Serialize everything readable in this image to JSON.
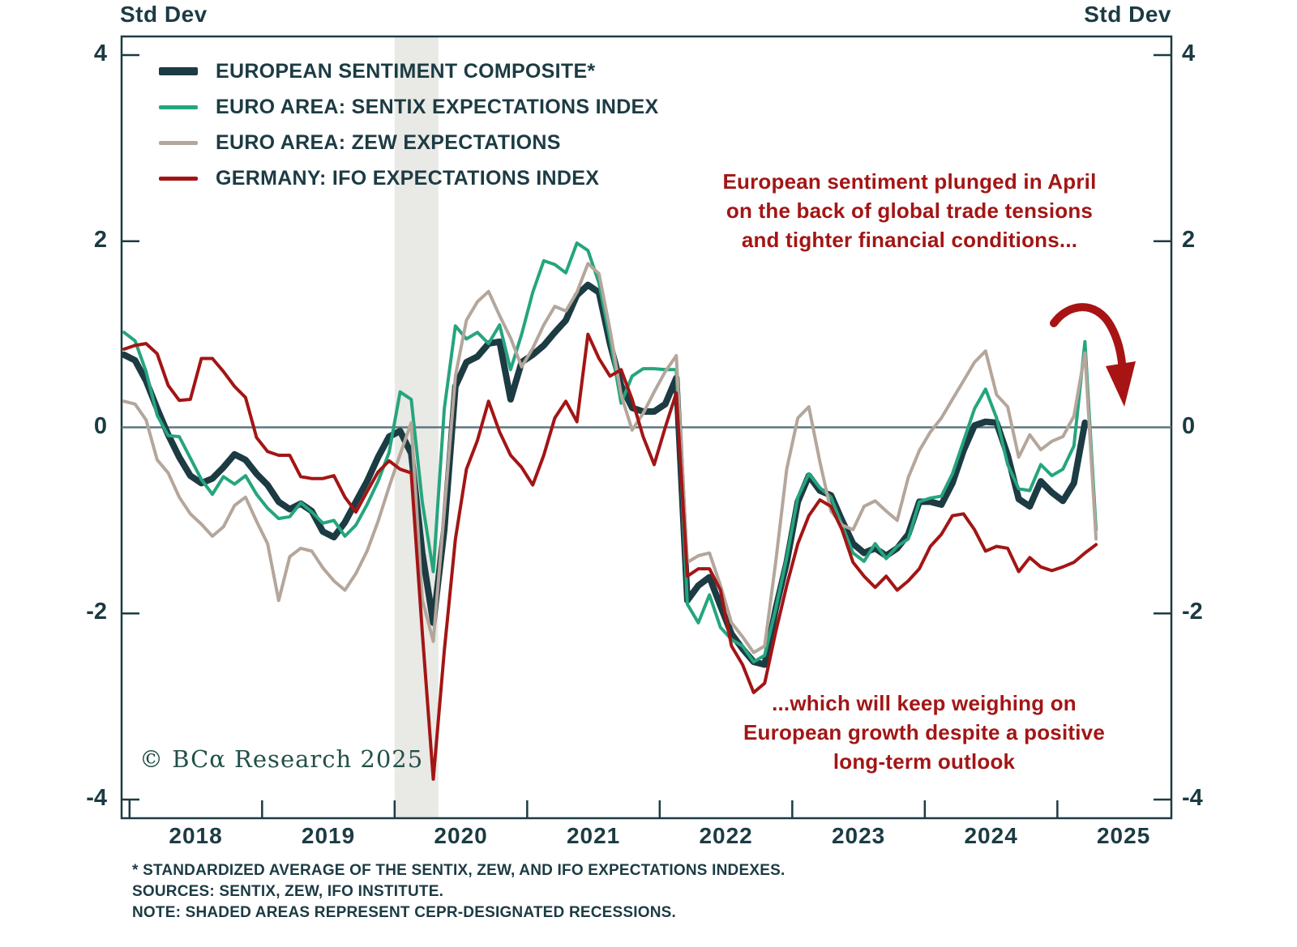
{
  "y_axis_label_left": "Std Dev",
  "y_axis_label_right": "Std Dev",
  "axes": {
    "ylim": [
      -4.2,
      4.2
    ],
    "yticks": [
      4,
      2,
      0,
      -2,
      -4
    ],
    "x_start": 2017.94,
    "x_end": 2025.86,
    "year_labels": [
      "2018",
      "2019",
      "2020",
      "2021",
      "2022",
      "2023",
      "2024",
      "2025"
    ],
    "grid": false,
    "legend_position": "top-left"
  },
  "recession_band": {
    "from": 2020.0,
    "to": 2020.33,
    "color": "#e9e9e5",
    "meaning": "CEPR-designated recession"
  },
  "annotations": {
    "top": {
      "lines": [
        "European sentiment plunged in April",
        "on the back of global trade tensions",
        "and tighter financial conditions..."
      ]
    },
    "bottom": {
      "lines": [
        "...which will keep weighing on",
        "European growth despite a positive",
        "long-term outlook"
      ]
    },
    "color": "#a31515",
    "arrow": "curved red arrow pointing down toward the zero line at far right"
  },
  "copyright": "© BCα Research 2025",
  "footnotes": [
    "* STANDARDIZED AVERAGE OF THE SENTIX, ZEW, AND IFO EXPECTATIONS INDEXES.",
    "SOURCES: SENTIX, ZEW, IFO INSTITUTE.",
    "NOTE: SHADED AREAS REPRESENT CEPR-DESIGNATED RECESSIONS."
  ],
  "colors": {
    "text": "#1c3b43",
    "border": "#1c3b43",
    "zero_line": "#5b7680",
    "annotation_red": "#a31515"
  },
  "chart_data": {
    "type": "line",
    "title": "",
    "xlabel": "",
    "ylabel": "Std Dev",
    "unit": "standard deviations",
    "frequency": "monthly",
    "start_month": "2017-12",
    "series": [
      {
        "name": "EUROPEAN SENTIMENT COMPOSITE*",
        "color": "#1c3b43",
        "stroke_width": 8,
        "end_month": "2025-03",
        "values": [
          0.78,
          0.72,
          0.5,
          0.2,
          -0.08,
          -0.32,
          -0.52,
          -0.6,
          -0.55,
          -0.43,
          -0.29,
          -0.35,
          -0.5,
          -0.62,
          -0.8,
          -0.88,
          -0.82,
          -0.9,
          -1.12,
          -1.18,
          -1.02,
          -0.8,
          -0.58,
          -0.32,
          -0.1,
          -0.04,
          -0.28,
          -1.35,
          -2.1,
          -1.1,
          0.44,
          0.7,
          0.76,
          0.9,
          0.92,
          0.3,
          0.7,
          0.78,
          0.88,
          1.02,
          1.15,
          1.42,
          1.53,
          1.45,
          0.9,
          0.45,
          0.21,
          0.17,
          0.17,
          0.25,
          0.53,
          -1.86,
          -1.7,
          -1.61,
          -1.92,
          -2.22,
          -2.38,
          -2.52,
          -2.55,
          -1.95,
          -1.45,
          -0.8,
          -0.52,
          -0.68,
          -0.73,
          -1.0,
          -1.25,
          -1.35,
          -1.3,
          -1.38,
          -1.3,
          -1.15,
          -0.8,
          -0.8,
          -0.83,
          -0.6,
          -0.25,
          0.02,
          0.06,
          0.05,
          -0.3,
          -0.77,
          -0.85,
          -0.58,
          -0.7,
          -0.79,
          -0.6,
          0.05
        ]
      },
      {
        "name": "EURO AREA: SENTIX EXPECTATIONS INDEX",
        "color": "#25a57e",
        "stroke_width": 4,
        "end_month": "2025-04",
        "values": [
          1.02,
          0.93,
          0.6,
          0.13,
          -0.09,
          -0.1,
          -0.33,
          -0.56,
          -0.72,
          -0.53,
          -0.61,
          -0.52,
          -0.72,
          -0.87,
          -0.98,
          -0.96,
          -0.81,
          -0.91,
          -1.03,
          -1.0,
          -1.17,
          -1.05,
          -0.83,
          -0.58,
          -0.27,
          0.38,
          0.3,
          -0.8,
          -1.55,
          0.2,
          1.09,
          0.95,
          1.02,
          0.9,
          1.1,
          0.62,
          1.0,
          1.45,
          1.79,
          1.75,
          1.66,
          1.98,
          1.9,
          1.55,
          0.95,
          0.26,
          0.55,
          0.63,
          0.63,
          0.62,
          0.62,
          -1.9,
          -2.1,
          -1.8,
          -2.15,
          -2.28,
          -2.35,
          -2.52,
          -2.45,
          -1.95,
          -1.4,
          -0.75,
          -0.5,
          -0.65,
          -0.75,
          -1.05,
          -1.35,
          -1.44,
          -1.25,
          -1.41,
          -1.28,
          -1.2,
          -0.8,
          -0.76,
          -0.74,
          -0.5,
          -0.15,
          0.2,
          0.41,
          0.1,
          -0.4,
          -0.66,
          -0.68,
          -0.4,
          -0.52,
          -0.45,
          -0.2,
          0.92,
          -1.1
        ]
      },
      {
        "name": "EURO AREA: ZEW EXPECTATIONS",
        "color": "#b4a69b",
        "stroke_width": 4,
        "end_month": "2025-04",
        "values": [
          0.28,
          0.25,
          0.08,
          -0.35,
          -0.49,
          -0.75,
          -0.93,
          -1.04,
          -1.17,
          -1.07,
          -0.84,
          -0.75,
          -1.01,
          -1.25,
          -1.86,
          -1.39,
          -1.3,
          -1.33,
          -1.51,
          -1.65,
          -1.75,
          -1.57,
          -1.33,
          -1.01,
          -0.64,
          -0.29,
          0.05,
          -1.85,
          -2.3,
          -0.9,
          0.55,
          1.15,
          1.35,
          1.46,
          1.2,
          0.96,
          0.65,
          0.85,
          1.1,
          1.3,
          1.25,
          1.45,
          1.76,
          1.65,
          1.05,
          0.35,
          -0.03,
          0.15,
          0.38,
          0.6,
          0.77,
          -1.45,
          -1.38,
          -1.35,
          -1.7,
          -2.1,
          -2.25,
          -2.42,
          -2.35,
          -1.45,
          -0.45,
          0.1,
          0.22,
          -0.37,
          -0.9,
          -1.05,
          -1.1,
          -0.85,
          -0.79,
          -0.9,
          -1.0,
          -0.54,
          -0.25,
          -0.05,
          0.1,
          0.3,
          0.5,
          0.7,
          0.82,
          0.35,
          0.22,
          -0.32,
          -0.08,
          -0.24,
          -0.15,
          -0.1,
          0.12,
          0.8,
          -1.2
        ]
      },
      {
        "name": "GERMANY: IFO EXPECTATIONS INDEX",
        "color": "#a31515",
        "stroke_width": 4,
        "end_month": "2025-04",
        "values": [
          0.84,
          0.88,
          0.9,
          0.79,
          0.45,
          0.29,
          0.3,
          0.74,
          0.74,
          0.6,
          0.44,
          0.32,
          -0.11,
          -0.26,
          -0.3,
          -0.3,
          -0.53,
          -0.55,
          -0.55,
          -0.52,
          -0.75,
          -0.91,
          -0.69,
          -0.48,
          -0.36,
          -0.45,
          -0.49,
          -2.2,
          -3.78,
          -2.4,
          -1.2,
          -0.45,
          -0.14,
          0.28,
          -0.05,
          -0.3,
          -0.43,
          -0.62,
          -0.3,
          0.1,
          0.28,
          0.06,
          1.0,
          0.74,
          0.55,
          0.62,
          0.3,
          -0.1,
          -0.4,
          0.0,
          0.37,
          -1.6,
          -1.52,
          -1.52,
          -1.75,
          -2.35,
          -2.55,
          -2.85,
          -2.75,
          -2.2,
          -1.7,
          -1.25,
          -0.95,
          -0.78,
          -0.85,
          -1.1,
          -1.45,
          -1.6,
          -1.72,
          -1.6,
          -1.75,
          -1.65,
          -1.52,
          -1.28,
          -1.15,
          -0.95,
          -0.93,
          -1.1,
          -1.33,
          -1.28,
          -1.3,
          -1.55,
          -1.4,
          -1.5,
          -1.54,
          -1.5,
          -1.45,
          -1.35,
          -1.26
        ]
      }
    ]
  }
}
